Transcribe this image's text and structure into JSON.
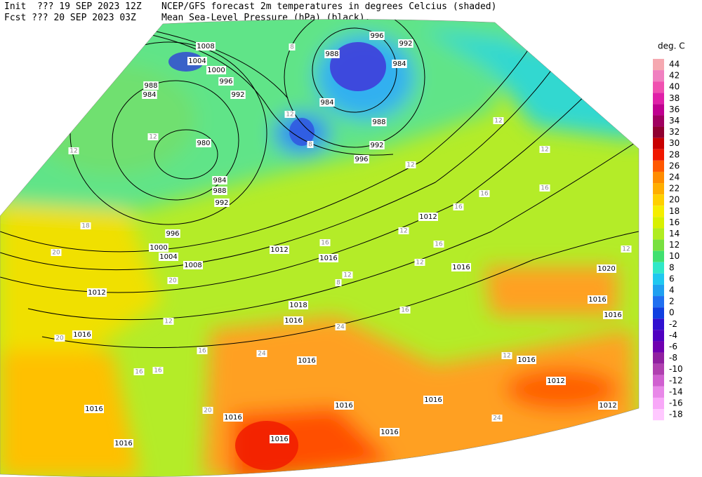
{
  "header": {
    "init": "Init  ??? 19 SEP 2023 12Z",
    "fcst": "Fcst ??? 20 SEP 2023 03Z",
    "title": "NCEP/GFS forecast 2m temperatures in degrees Celcius (shaded)",
    "subtitle": "Mean Sea-Level Pressure (hPa) (black)."
  },
  "legend": {
    "title": "deg. C",
    "entries": [
      {
        "label": "44",
        "color": "#f5a8b0"
      },
      {
        "label": "42",
        "color": "#f080c0"
      },
      {
        "label": "40",
        "color": "#f050b0"
      },
      {
        "label": "38",
        "color": "#e020a8"
      },
      {
        "label": "36",
        "color": "#c00090"
      },
      {
        "label": "34",
        "color": "#a00060"
      },
      {
        "label": "32",
        "color": "#900030"
      },
      {
        "label": "30",
        "color": "#c80000"
      },
      {
        "label": "28",
        "color": "#f01800"
      },
      {
        "label": "26",
        "color": "#ff5800"
      },
      {
        "label": "24",
        "color": "#ff8c00"
      },
      {
        "label": "22",
        "color": "#ffae00"
      },
      {
        "label": "20",
        "color": "#ffd000"
      },
      {
        "label": "18",
        "color": "#f5ee00"
      },
      {
        "label": "16",
        "color": "#d8f000"
      },
      {
        "label": "14",
        "color": "#b0ec20"
      },
      {
        "label": "12",
        "color": "#78e040"
      },
      {
        "label": "10",
        "color": "#40e070"
      },
      {
        "label": "8",
        "color": "#30e8c8"
      },
      {
        "label": "6",
        "color": "#20c8f0"
      },
      {
        "label": "4",
        "color": "#20a0f0"
      },
      {
        "label": "2",
        "color": "#2070f0"
      },
      {
        "label": "0",
        "color": "#1040e0"
      },
      {
        "label": "-2",
        "color": "#3010d0"
      },
      {
        "label": "-4",
        "color": "#5000c0"
      },
      {
        "label": "-6",
        "color": "#7000b0"
      },
      {
        "label": "-8",
        "color": "#9020a0"
      },
      {
        "label": "-10",
        "color": "#b040b0"
      },
      {
        "label": "-12",
        "color": "#d060d0"
      },
      {
        "label": "-14",
        "color": "#e888e8"
      },
      {
        "label": "-16",
        "color": "#f8a8f8"
      },
      {
        "label": "-18",
        "color": "#ffc8ff"
      }
    ]
  },
  "isobar_labels": [
    "1008",
    "1004",
    "1000",
    "996",
    "992",
    "988",
    "984",
    "980",
    "984",
    "988",
    "992",
    "996",
    "1000",
    "1004",
    "1008",
    "1012",
    "1016",
    "1016",
    "1016",
    "1016",
    "1016",
    "1016",
    "1016",
    "1016",
    "1016",
    "1016",
    "1018",
    "1012",
    "1016",
    "1012",
    "1016",
    "1020",
    "1016",
    "1016",
    "1016",
    "1012",
    "1012",
    "996",
    "992",
    "984",
    "988",
    "984",
    "988",
    "992",
    "996"
  ],
  "temperature_labels": [
    "12",
    "8",
    "12",
    "18",
    "20",
    "20",
    "12",
    "20",
    "16",
    "16",
    "16",
    "24",
    "20",
    "24",
    "12",
    "8",
    "16",
    "12",
    "16",
    "12",
    "16",
    "12",
    "12",
    "16",
    "16",
    "12",
    "8",
    "12",
    "12",
    "24",
    "16",
    "12"
  ]
}
